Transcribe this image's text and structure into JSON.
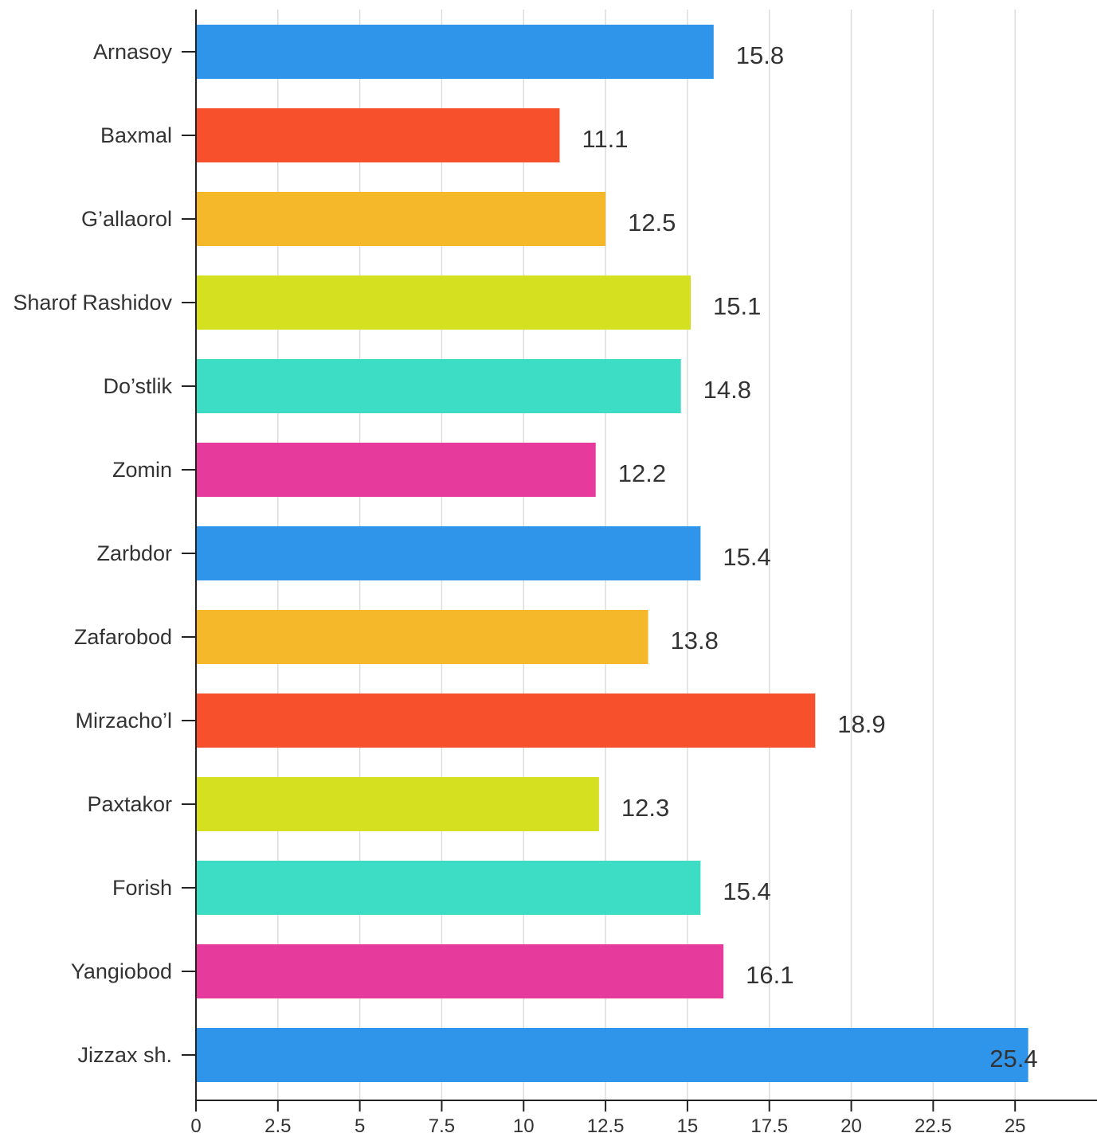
{
  "chart_data": {
    "type": "bar",
    "orientation": "horizontal",
    "title": "",
    "xlabel": "",
    "ylabel": "",
    "categories": [
      "Arnasoy",
      "Baxmal",
      "G’allaorol",
      "Sharof Rashidov",
      "Do’stlik",
      "Zomin",
      "Zarbdor",
      "Zafarobod",
      "Mirzacho’l",
      "Paxtakor",
      "Forish",
      "Yangiobod",
      "Jizzax sh."
    ],
    "values": [
      15.8,
      11.1,
      12.5,
      15.1,
      14.8,
      12.2,
      15.4,
      13.8,
      18.9,
      12.3,
      15.4,
      16.1,
      25.4
    ],
    "value_labels": [
      "15.8",
      "11.1",
      "12.5",
      "15.1",
      "14.8",
      "12.2",
      "15.4",
      "13.8",
      "18.9",
      "12.3",
      "15.4",
      "16.1",
      "25.4"
    ],
    "colors": [
      "#2f95eb",
      "#f7502c",
      "#f5b82b",
      "#d5e021",
      "#3ddcc4",
      "#e63b9c",
      "#2f95eb",
      "#f5b82b",
      "#f7502c",
      "#d5e021",
      "#3ddcc4",
      "#e63b9c",
      "#2f95eb"
    ],
    "xlim": [
      0,
      27.5
    ],
    "xticks": [
      0,
      2.5,
      5,
      7.5,
      10,
      12.5,
      15,
      17.5,
      20,
      22.5,
      25
    ],
    "xtick_labels": [
      "0",
      "2.5",
      "5",
      "7.5",
      "10",
      "12.5",
      "15",
      "17.5",
      "20",
      "22.5",
      "25"
    ],
    "grid": true,
    "legend": "none"
  }
}
